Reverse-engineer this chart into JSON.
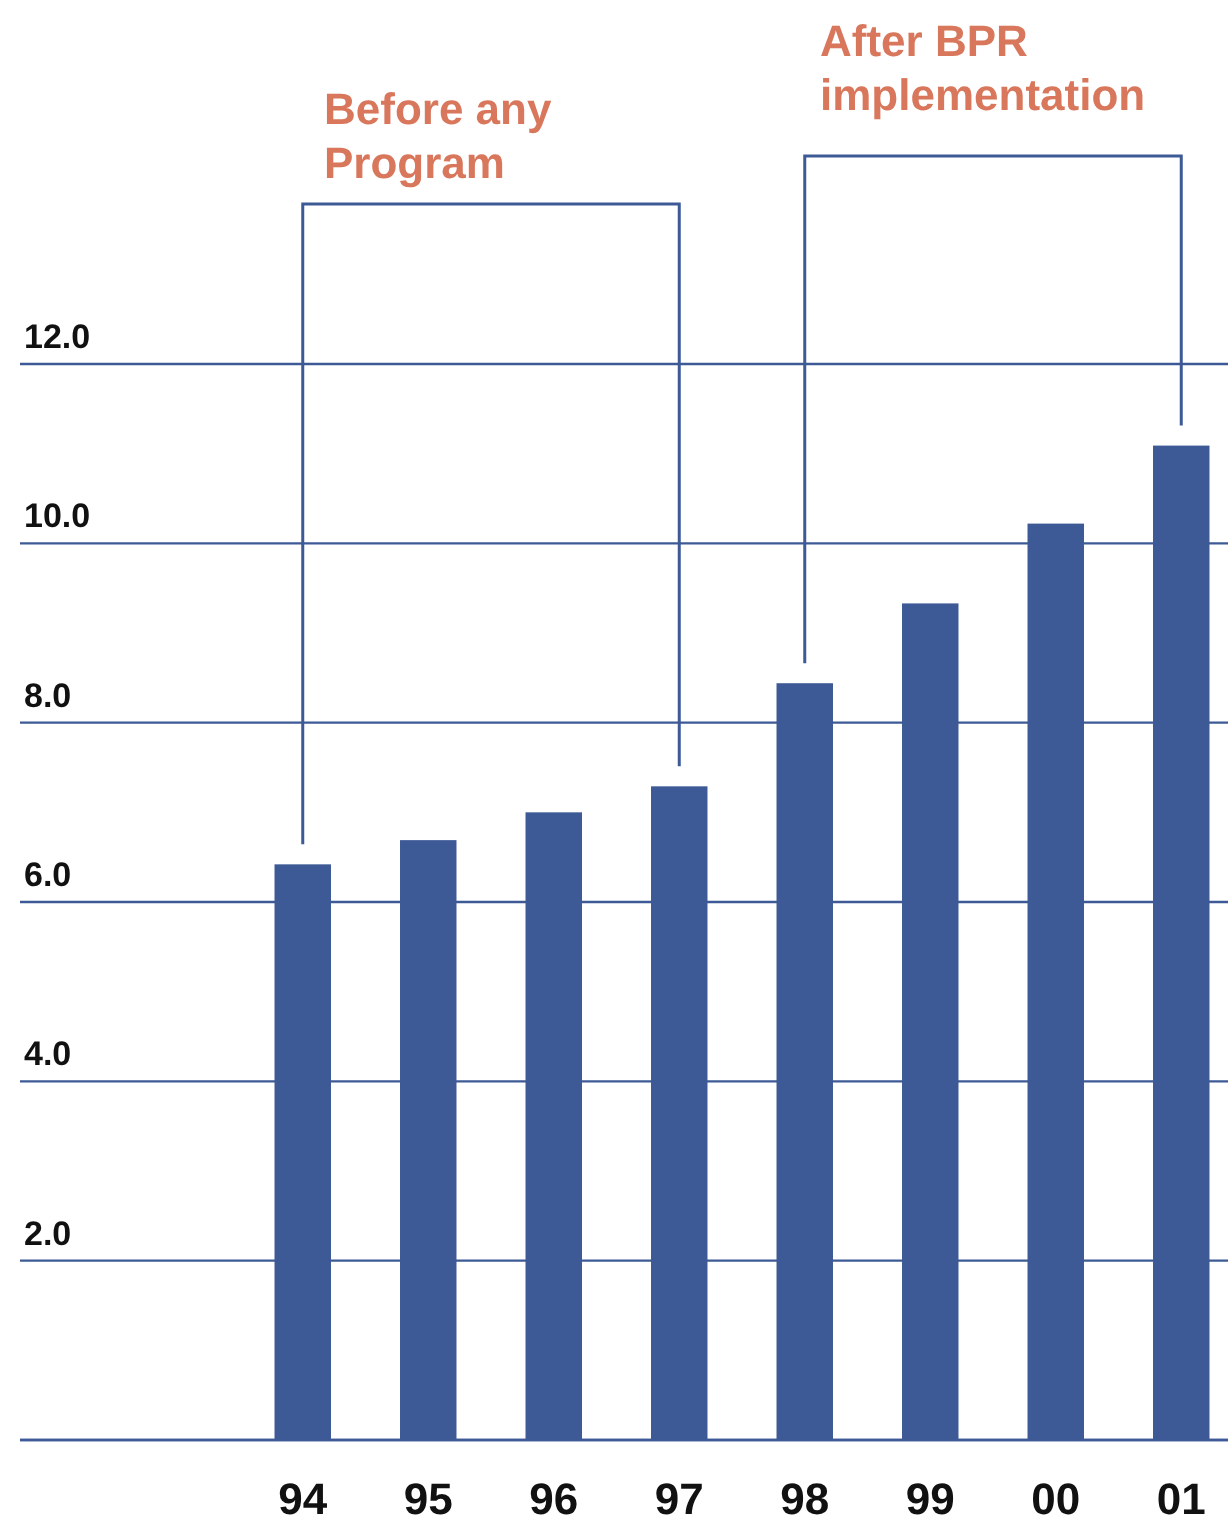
{
  "chart_data": {
    "type": "bar",
    "categories": [
      "94",
      "95",
      "96",
      "97",
      "98",
      "99",
      "00",
      "01"
    ],
    "values": [
      6.42,
      6.69,
      7.0,
      7.29,
      8.44,
      9.33,
      10.22,
      11.09
    ],
    "color": "#3d5a96",
    "ylim": [
      0,
      12
    ],
    "yticks": [
      {
        "value": 0,
        "label": null
      },
      {
        "value": 2,
        "label": "2.0"
      },
      {
        "value": 4,
        "label": "4.0"
      },
      {
        "value": 6,
        "label": "6.0"
      },
      {
        "value": 8,
        "label": "8.0"
      },
      {
        "value": 10,
        "label": "10.0"
      },
      {
        "value": 12,
        "label": "12.0"
      }
    ],
    "grid": "y",
    "annotations": [
      "Before any Program",
      "After BPR implementation"
    ]
  }
}
